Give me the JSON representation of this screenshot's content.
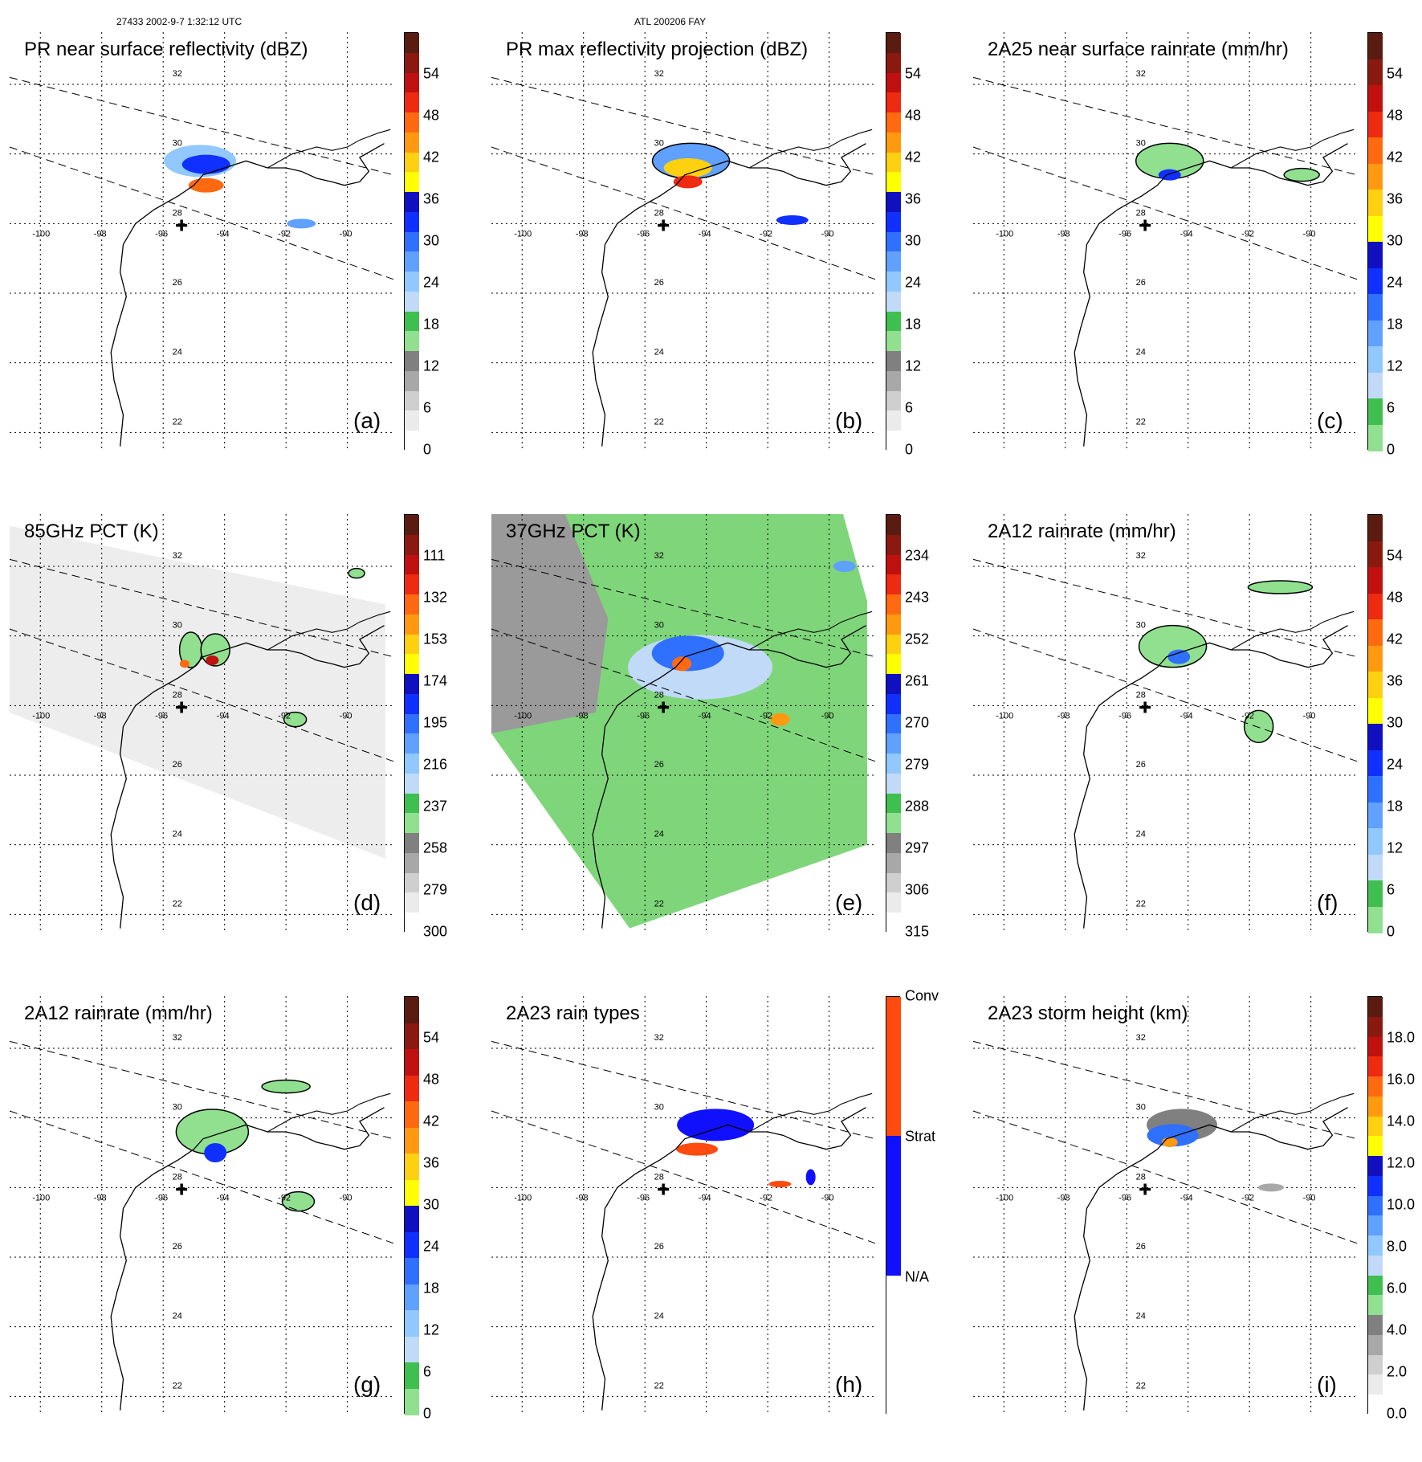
{
  "header": {
    "left": "27433 2002-9-7 1:32:12 UTC",
    "center": "ATL 200206 FAY"
  },
  "map": {
    "lat_labels": [
      "32",
      "30",
      "28",
      "26",
      "24",
      "22"
    ],
    "lon_labels": [
      "-100",
      "-98",
      "-96",
      "-94",
      "-92",
      "-90"
    ]
  },
  "colorbars": {
    "dbz": {
      "ticks": [
        "54",
        "48",
        "42",
        "36",
        "30",
        "24",
        "18",
        "12",
        "6",
        "0"
      ],
      "colors": [
        "#5a1b10",
        "#8a1a10",
        "#c01010",
        "#ee2a10",
        "#ff6a10",
        "#ff9a10",
        "#ffd010",
        "#ffff00",
        "#1010c0",
        "#1030ff",
        "#3070ff",
        "#60a0ff",
        "#90c8ff",
        "#c0daf8",
        "#3fbf4f",
        "#90e090",
        "#808080",
        "#a8a8a8",
        "#cfcfcf",
        "#ebebeb",
        "#ffffff"
      ]
    },
    "rain": {
      "ticks": [
        "54",
        "48",
        "42",
        "36",
        "30",
        "24",
        "18",
        "12",
        "6",
        "0"
      ],
      "colors": [
        "#5a1b10",
        "#8a1a10",
        "#c01010",
        "#ee2a10",
        "#ff6a10",
        "#ff9a10",
        "#ffd010",
        "#ffff00",
        "#1010c0",
        "#1030ff",
        "#3070ff",
        "#60a0ff",
        "#90c8ff",
        "#c0daf8",
        "#3fbf4f",
        "#90e090"
      ]
    },
    "pct85": {
      "ticks": [
        "111",
        "132",
        "153",
        "174",
        "195",
        "216",
        "237",
        "258",
        "279",
        "300"
      ]
    },
    "pct37": {
      "ticks": [
        "234",
        "243",
        "252",
        "261",
        "270",
        "279",
        "288",
        "297",
        "306",
        "315"
      ]
    },
    "height": {
      "ticks": [
        "18.0",
        "16.0",
        "14.0",
        "12.0",
        "10.0",
        "8.0",
        "6.0",
        "4.0",
        "2.0",
        "0.0"
      ]
    },
    "types": {
      "ticks": [
        "Conv",
        "Strat",
        "N/A"
      ]
    }
  },
  "panels": [
    {
      "title": "PR near surface reflectivity (dBZ)",
      "label": "(a)"
    },
    {
      "title": "PR max reflectivity projection (dBZ)",
      "label": "(b)"
    },
    {
      "title": "2A25 near surface rainrate (mm/hr)",
      "label": "(c)"
    },
    {
      "title": "85GHz PCT (K)",
      "label": "(d)"
    },
    {
      "title": "37GHz PCT (K)",
      "label": "(e)"
    },
    {
      "title": "2A12 rainrate (mm/hr)",
      "label": "(f)"
    },
    {
      "title": "2A12 rainrate (mm/hr)",
      "label": "(g)"
    },
    {
      "title": "2A23 rain types",
      "label": "(h)"
    },
    {
      "title": "2A23 storm height (km)",
      "label": "(i)"
    }
  ]
}
